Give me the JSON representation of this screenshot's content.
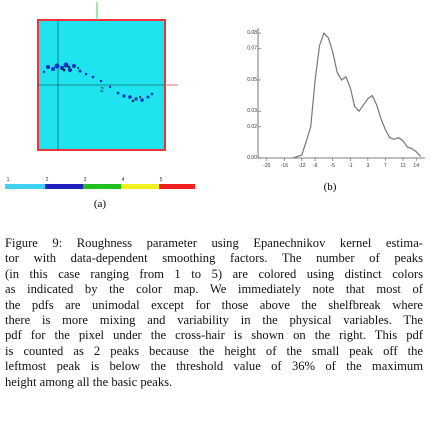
{
  "figure": {
    "panel_a": {
      "label": "(a)",
      "annotation": "2",
      "colorbar_labels": [
        "1",
        "2",
        "3",
        "4",
        "5"
      ]
    },
    "panel_b": {
      "label": "(b)",
      "type": "line",
      "color": "#777777",
      "x": [
        -14,
        -12,
        -10,
        -9,
        -8,
        -7,
        -6,
        -5,
        -4,
        -3,
        -2,
        -1,
        0,
        1,
        2,
        3,
        4,
        5,
        6,
        7,
        8,
        9,
        10,
        11,
        12,
        13,
        14,
        15
      ],
      "values": [
        0,
        0.002,
        0.02,
        0.05,
        0.072,
        0.08,
        0.077,
        0.068,
        0.055,
        0.05,
        0.052,
        0.045,
        0.033,
        0.03,
        0.034,
        0.038,
        0.04,
        0.034,
        0.025,
        0.018,
        0.013,
        0.012,
        0.013,
        0.011,
        0.007,
        0.006,
        0.004,
        0.001
      ],
      "xlim": [
        -22,
        16
      ],
      "xticks": [
        -20,
        -16,
        -12,
        -9,
        -5,
        -1,
        3,
        7,
        11,
        14
      ],
      "ylim": [
        0,
        0.082
      ],
      "yticks": [
        {
          "value": 0,
          "label": "0.00"
        },
        0.02,
        0.03,
        0.05,
        0.07,
        0.08
      ]
    }
  },
  "caption": {
    "lines": [
      "Figure 9: Roughness parameter using Epanechnikov kernel estima-",
      "tor with data-dependent smoothing factors.  The number of peaks",
      "(in this case ranging from 1 to 5) are colored using distinct colors",
      "as indicated by the color map.  We immediately note that most of",
      "the pdfs are unimodal except for those above the shelfbreak where",
      "there is more mixing and variability in the physical variables. The",
      "pdf for the pixel under the cross-hair is shown on the right. This pdf",
      "is counted as 2 peaks because the height of the small peak off the",
      "leftmost peak is below the threshold value of 36% of the maximum",
      "height among all the basic peaks."
    ]
  }
}
